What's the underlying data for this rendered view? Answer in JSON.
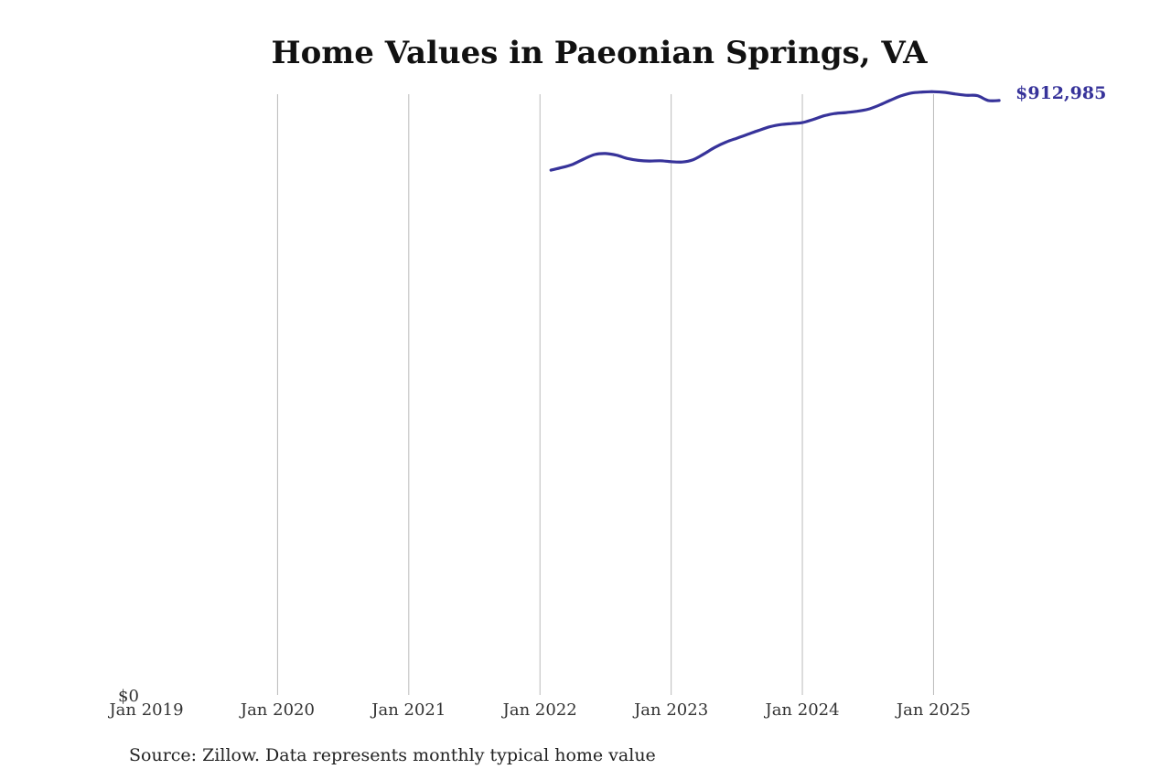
{
  "title": "Home Values in Paeonian Springs, VA",
  "source": "Source: Zillow. Data represents monthly typical home value",
  "colors": {
    "line": "#37339a",
    "grid": "#bbbbbb",
    "text": "#333333",
    "title": "#111111"
  },
  "chart_data": {
    "type": "line",
    "title": "Home Values in Paeonian Springs, VA",
    "xlabel": "",
    "ylabel": "",
    "x_ticks": [
      "Jan 2019",
      "Jan 2020",
      "Jan 2021",
      "Jan 2022",
      "Jan 2023",
      "Jan 2024",
      "Jan 2025"
    ],
    "y_ticks": [
      "$0"
    ],
    "xlim": [
      "2019-01",
      "2025-10"
    ],
    "ylim": [
      0,
      955000
    ],
    "grid": {
      "vertical": true,
      "horizontal": false
    },
    "end_label": "$912,985",
    "series": [
      {
        "x": [
          "2022-02",
          "2022-03",
          "2022-04",
          "2022-05",
          "2022-06",
          "2022-07",
          "2022-08",
          "2022-09",
          "2022-10",
          "2022-11",
          "2022-12",
          "2023-01",
          "2023-02",
          "2023-03",
          "2023-04",
          "2023-05",
          "2023-06",
          "2023-07",
          "2023-08",
          "2023-09",
          "2023-10",
          "2023-11",
          "2023-12",
          "2024-01",
          "2024-02",
          "2024-03",
          "2024-04",
          "2024-05",
          "2024-06",
          "2024-07",
          "2024-08",
          "2024-09",
          "2024-10",
          "2024-11",
          "2024-12",
          "2025-01",
          "2025-02",
          "2025-03",
          "2025-04",
          "2025-05",
          "2025-06",
          "2025-07"
        ],
        "values": [
          806000,
          810000,
          815000,
          823000,
          830000,
          831500,
          829000,
          824000,
          821000,
          820000,
          820500,
          819000,
          818500,
          822000,
          831000,
          841000,
          849000,
          855000,
          861000,
          867000,
          872500,
          876000,
          877500,
          879000,
          884000,
          889500,
          893000,
          894500,
          896500,
          899500,
          905500,
          913000,
          920000,
          924500,
          926000,
          926500,
          925500,
          923000,
          921000,
          920500,
          912985,
          912985
        ]
      }
    ]
  }
}
